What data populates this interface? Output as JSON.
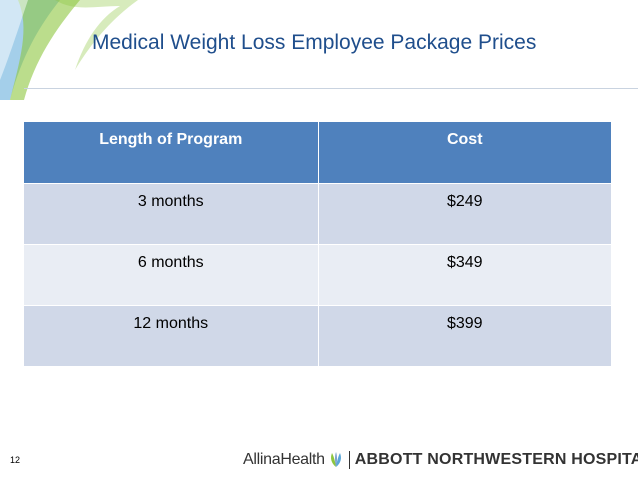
{
  "slide": {
    "title": "Medical Weight Loss Employee Package Prices",
    "number": "12"
  },
  "table": {
    "headers": [
      "Length of Program",
      "Cost"
    ],
    "rows": [
      [
        "3 months",
        "$249"
      ],
      [
        "6 months",
        "$349"
      ],
      [
        "12 months",
        "$399"
      ]
    ]
  },
  "footer": {
    "brand_primary": "AllinaHealth",
    "brand_secondary": "ABBOTT NORTHWESTERN HOSPITAL"
  },
  "colors": {
    "title": "#1f4e8c",
    "header_fill": "#4f81bd",
    "row_fill_dark": "#d0d8e8",
    "row_fill_light": "#e9edf4",
    "swoosh_green": "#8dc63f",
    "swoosh_blue": "#5aa7d8"
  },
  "icons": [
    "corner-swoosh-art",
    "allina-leaf-icon"
  ]
}
